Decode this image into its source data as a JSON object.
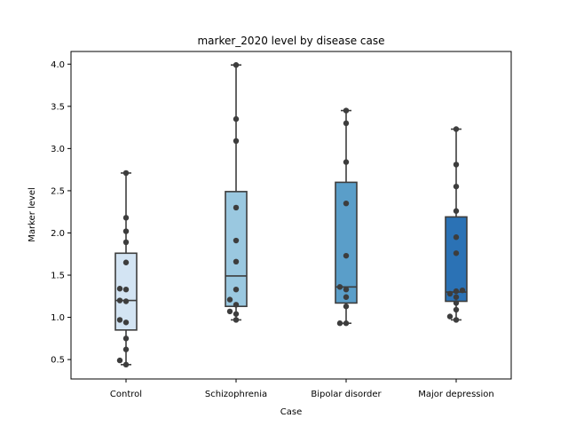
{
  "chart_data": {
    "type": "box",
    "title": "marker_2020 level by disease case",
    "xlabel": "Case",
    "ylabel": "Marker level",
    "categories": [
      "Control",
      "Schizophrenia",
      "Bipolar disorder",
      "Major depression"
    ],
    "ylim": [
      0.27,
      4.15
    ],
    "yticks": [
      0.5,
      1.0,
      1.5,
      2.0,
      2.5,
      3.0,
      3.5,
      4.0
    ],
    "ytick_labels": [
      "0.5",
      "1.0",
      "1.5",
      "2.0",
      "2.5",
      "3.0",
      "3.5",
      "4.0"
    ],
    "grid": false,
    "colors": {
      "box_fills": [
        "#d3e4f3",
        "#9ac8e0",
        "#5a9ec9",
        "#2b72b5"
      ],
      "line": "#3d3d3d",
      "points": "#3d3d3d"
    },
    "boxes": [
      {
        "category": "Control",
        "whisker_low": 0.44,
        "q1": 0.85,
        "median": 1.2,
        "q3": 1.76,
        "whisker_high": 2.71
      },
      {
        "category": "Schizophrenia",
        "whisker_low": 0.97,
        "q1": 1.13,
        "median": 1.49,
        "q3": 2.49,
        "whisker_high": 3.99
      },
      {
        "category": "Bipolar disorder",
        "whisker_low": 0.93,
        "q1": 1.17,
        "median": 1.36,
        "q3": 2.6,
        "whisker_high": 3.45
      },
      {
        "category": "Major depression",
        "whisker_low": 0.97,
        "q1": 1.19,
        "median": 1.3,
        "q3": 2.19,
        "whisker_high": 3.23
      }
    ],
    "points": [
      {
        "category": "Control",
        "values": [
          0.44,
          0.49,
          0.62,
          0.75,
          0.94,
          0.97,
          1.19,
          1.2,
          1.33,
          1.34,
          1.65,
          1.89,
          2.02,
          2.18,
          2.71
        ]
      },
      {
        "category": "Schizophrenia",
        "values": [
          0.97,
          1.04,
          1.07,
          1.15,
          1.21,
          1.33,
          1.66,
          1.91,
          2.3,
          3.09,
          3.35,
          3.99
        ]
      },
      {
        "category": "Bipolar disorder",
        "values": [
          0.93,
          0.93,
          1.13,
          1.24,
          1.33,
          1.36,
          1.73,
          2.35,
          2.84,
          3.3,
          3.45
        ]
      },
      {
        "category": "Major depression",
        "values": [
          0.97,
          1.01,
          1.09,
          1.17,
          1.24,
          1.28,
          1.31,
          1.32,
          1.76,
          1.95,
          2.26,
          2.55,
          2.81,
          3.23
        ]
      }
    ]
  }
}
